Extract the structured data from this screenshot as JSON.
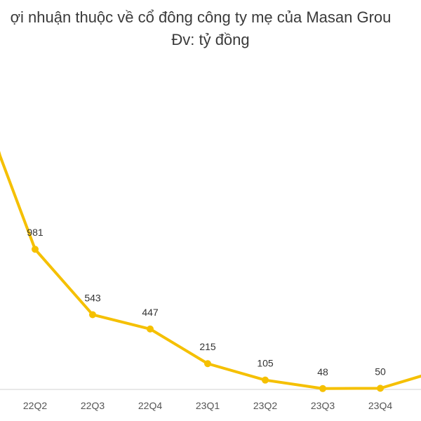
{
  "colors": {
    "line": "#f5c000",
    "axis": "#d0d0d0",
    "text": "#3a3a3a"
  },
  "chart_data": {
    "type": "line",
    "title": "ợi nhuận thuộc về cổ đông công ty mẹ của Masan Grou",
    "subtitle": "Đv: tỷ đồng",
    "categories": [
      "22Q2",
      "22Q3",
      "22Q4",
      "23Q1",
      "23Q2",
      "23Q3",
      "23Q4"
    ],
    "values": [
      981,
      543,
      447,
      215,
      105,
      48,
      50
    ],
    "data_labels": [
      "981",
      "543",
      "447",
      "215",
      "105",
      "48",
      "50"
    ],
    "ylim": [
      0,
      1400
    ],
    "grid": false,
    "legend": "none"
  }
}
